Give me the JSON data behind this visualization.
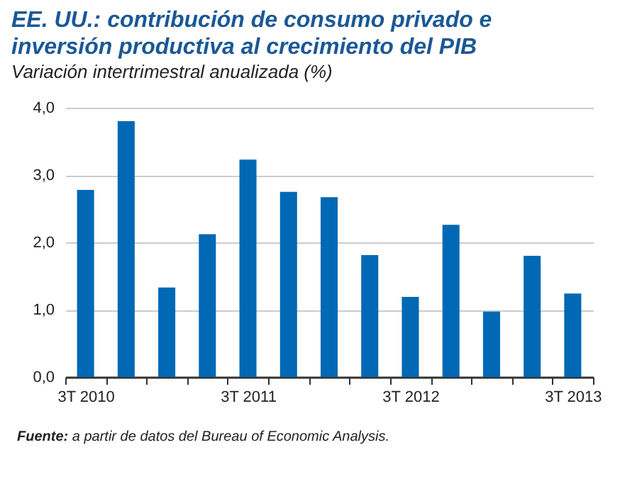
{
  "chart_data": {
    "type": "bar",
    "title": "EE. UU.: contribución de consumo privado e inversión productiva al crecimiento del PIB",
    "subtitle": "Variación intertrimestral anualizada (%)",
    "categories": [
      "3T 2010",
      null,
      null,
      null,
      "3T 2011",
      null,
      null,
      null,
      "3T 2012",
      null,
      null,
      null,
      "3T 2013"
    ],
    "values": [
      2.78,
      3.8,
      1.33,
      2.12,
      3.23,
      2.75,
      2.67,
      1.81,
      1.19,
      2.26,
      0.97,
      1.8,
      1.24
    ],
    "color": "#0068b4",
    "ylim": [
      0,
      4
    ],
    "yticks": [
      {
        "value": 0,
        "label": "0,0"
      },
      {
        "value": 1,
        "label": "1,0"
      },
      {
        "value": 2,
        "label": "2,0"
      },
      {
        "value": 3,
        "label": "3,0"
      },
      {
        "value": 4,
        "label": "4,0"
      }
    ],
    "grid": "y",
    "annotations": [
      "Fuente: a partir de datos del Bureau of Economic Analysis."
    ]
  }
}
